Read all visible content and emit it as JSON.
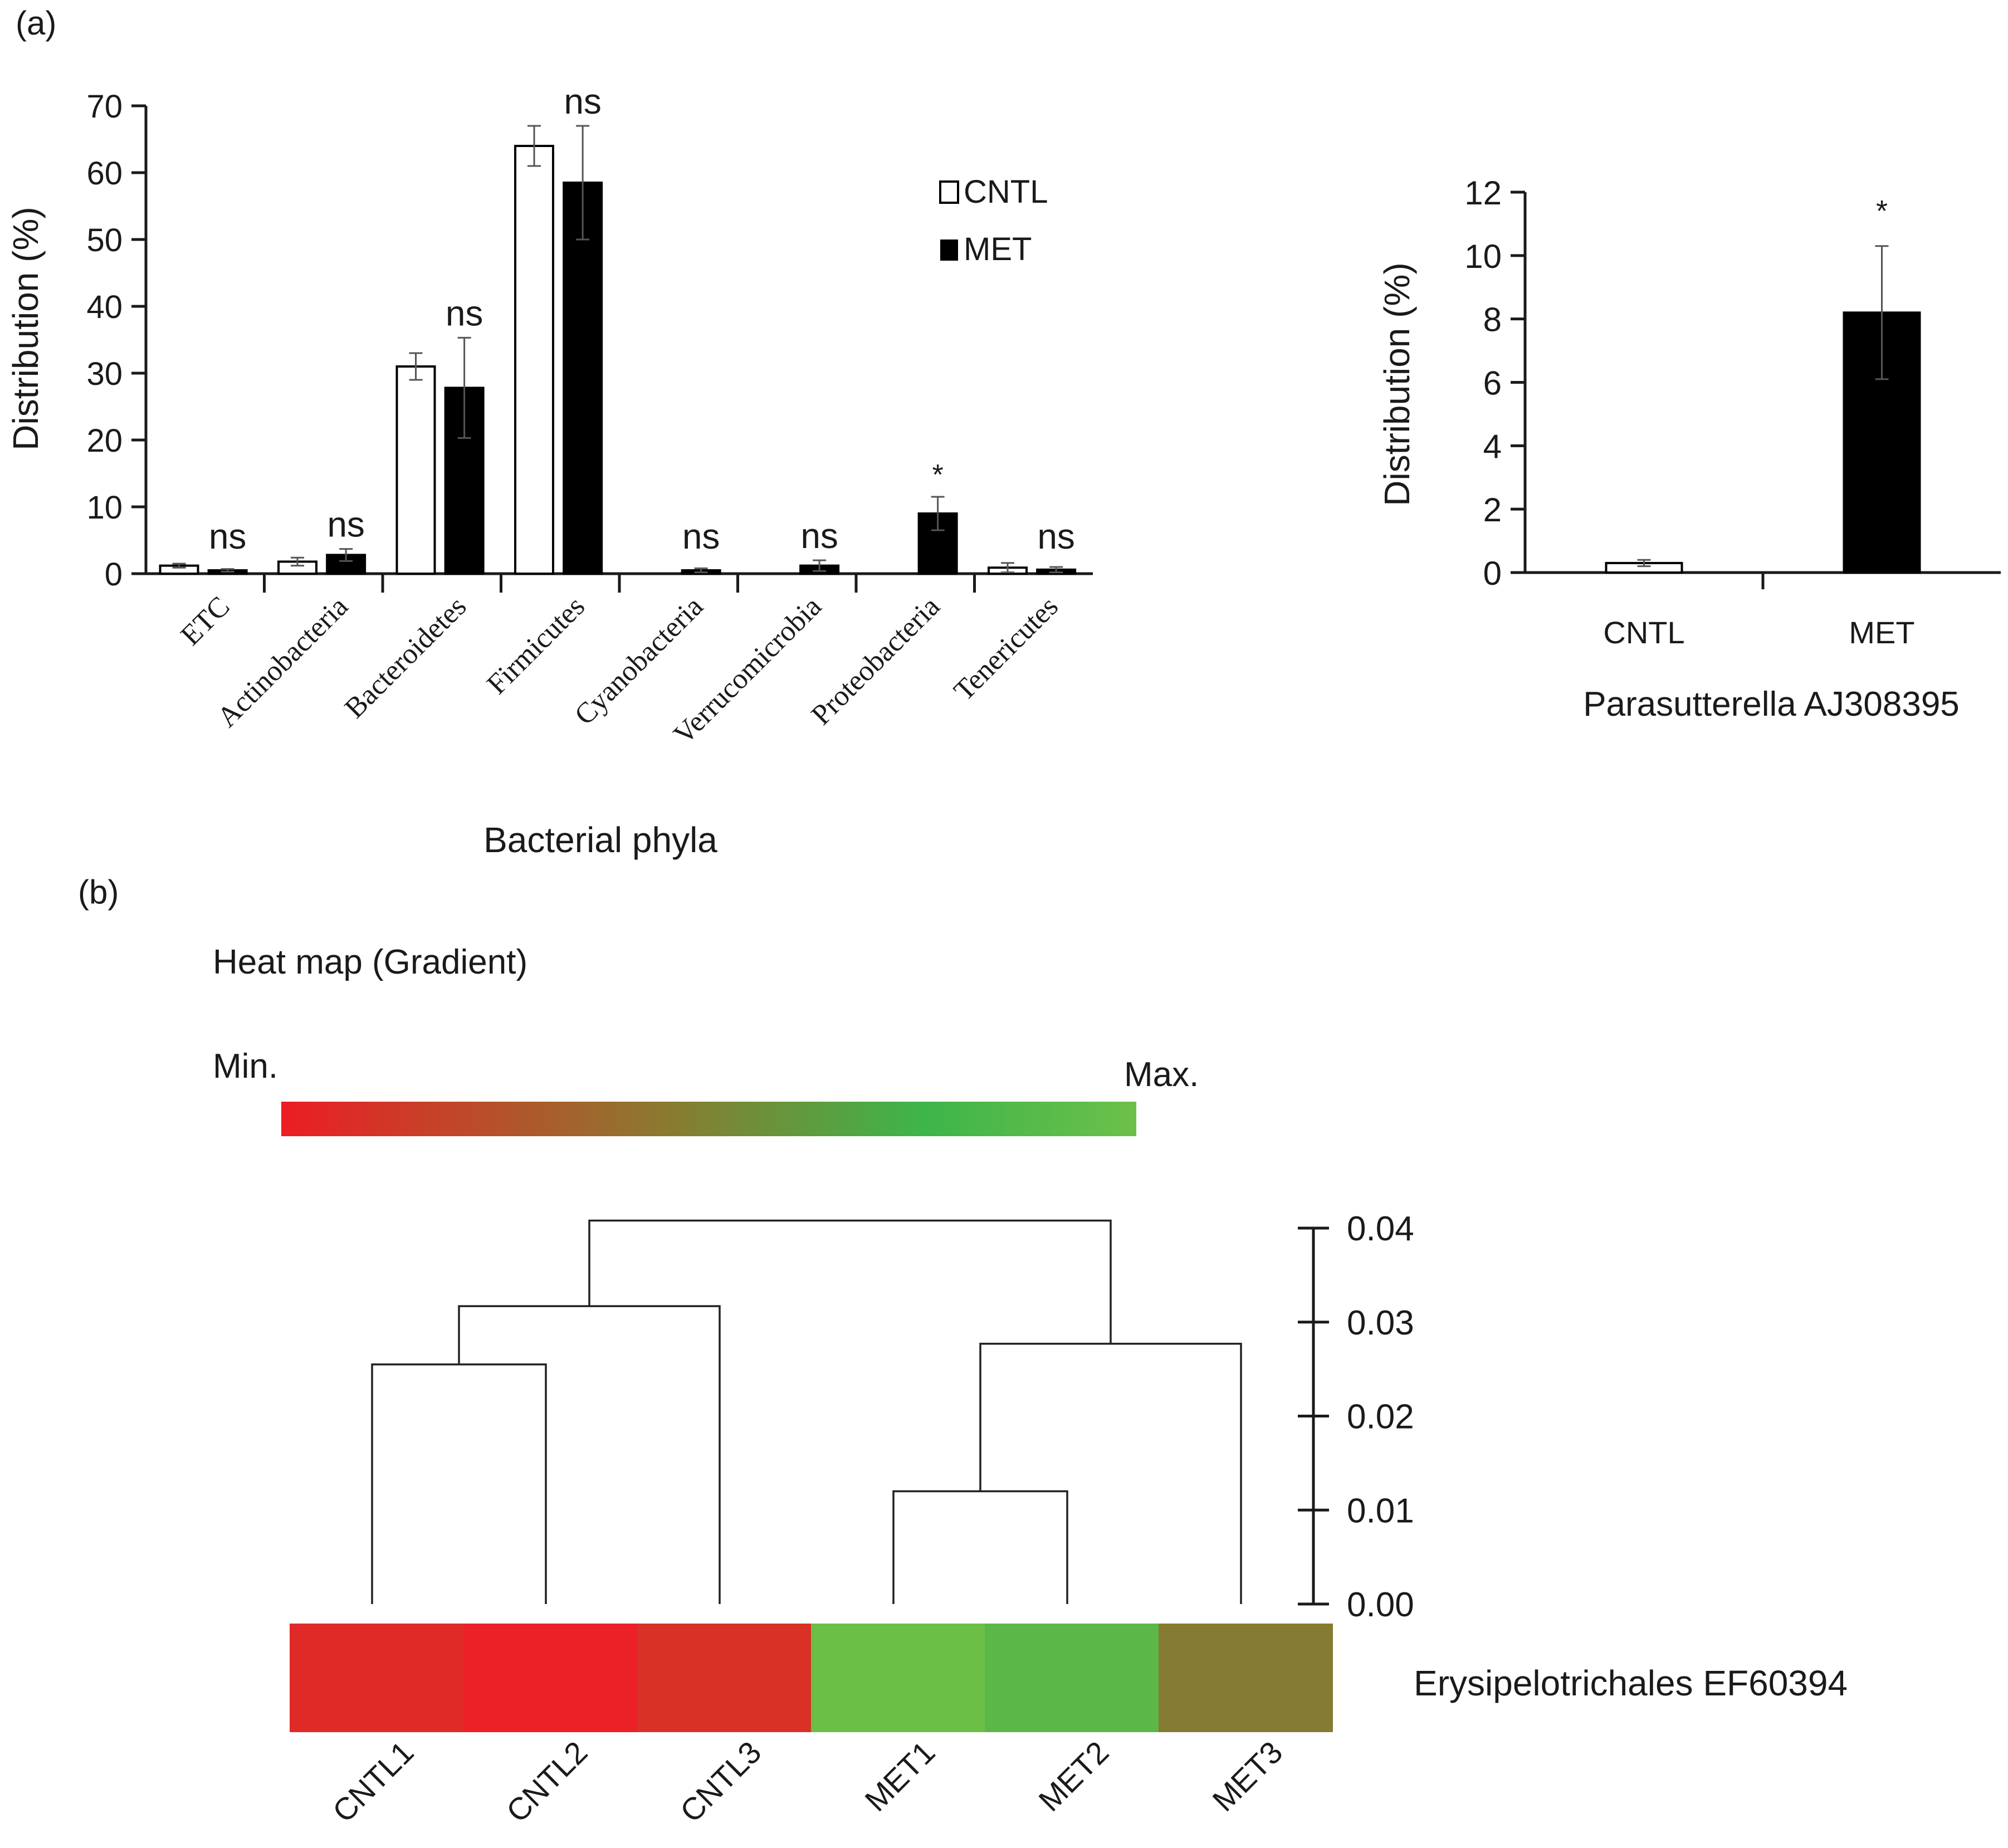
{
  "panel_labels": {
    "a": "(a)",
    "b": "(b)"
  },
  "legend": {
    "cntl": "CNTL",
    "met": "MET"
  },
  "colors": {
    "cntl_fill": "#ffffff",
    "met_fill": "#000000",
    "heat_min": "#ed1c24",
    "heat_mid": "#8a7a30",
    "heat_max": "#6cc04a"
  },
  "heatmap": {
    "title": "Heat map (Gradient)",
    "min_label": "Min.",
    "max_label": "Max.",
    "row_label": "Erysipelotrichales EF60394",
    "samples": [
      "CNTL1",
      "CNTL2",
      "CNTL3",
      "MET1",
      "MET2",
      "MET3"
    ],
    "cell_colors": [
      "#e02a27",
      "#ec2027",
      "#d93126",
      "#6bbf46",
      "#5bb848",
      "#857b32"
    ]
  },
  "chart_data": [
    {
      "type": "bar",
      "id": "phyla",
      "title": "",
      "xlabel": "Bacterial phyla",
      "ylabel": "Distribution (%)",
      "ylim": [
        0,
        70
      ],
      "yticks": [
        0,
        10,
        20,
        30,
        40,
        50,
        60,
        70
      ],
      "categories": [
        "ETC",
        "Actinobacteria",
        "Bacteroidetes",
        "Firmicutes",
        "Cyanobacteria",
        "Verrucomicrobia",
        "Proteobacteria",
        "Tenericutes"
      ],
      "series": [
        {
          "name": "CNTL",
          "values": [
            1.2,
            1.8,
            31.0,
            64.0,
            null,
            null,
            null,
            0.9
          ],
          "errors": [
            0.3,
            0.6,
            2.0,
            3.0,
            null,
            null,
            null,
            0.7
          ]
        },
        {
          "name": "MET",
          "values": [
            0.5,
            2.8,
            27.8,
            58.5,
            0.5,
            1.2,
            9.0,
            0.6
          ],
          "errors": [
            0.2,
            0.9,
            7.5,
            8.5,
            0.3,
            0.8,
            2.5,
            0.4
          ]
        }
      ],
      "annotations": [
        "ns",
        "ns",
        "ns",
        "ns",
        "ns",
        "ns",
        "*",
        "ns"
      ]
    },
    {
      "type": "bar",
      "id": "parasutterella",
      "title": "",
      "xlabel": "Parasutterella AJ308395",
      "ylabel": "Distribution (%)",
      "ylim": [
        0,
        12
      ],
      "yticks": [
        0,
        2,
        4,
        6,
        8,
        10,
        12
      ],
      "categories": [
        "CNTL",
        "MET"
      ],
      "values": [
        0.3,
        8.2
      ],
      "errors": [
        0.1,
        2.1
      ],
      "annotations": [
        "",
        "*"
      ]
    },
    {
      "type": "dendrogram",
      "id": "clustering",
      "ylim": [
        0,
        0.04
      ],
      "yticks": [
        "0.00",
        "0.01",
        "0.02",
        "0.03",
        "0.04"
      ],
      "leaves": [
        "CNTL1",
        "CNTL2",
        "CNTL3",
        "MET1",
        "MET2",
        "MET3"
      ],
      "merges": [
        {
          "left": "CNTL1",
          "right": "CNTL2",
          "height": 0.0255
        },
        {
          "left": "MET1",
          "right": "MET2",
          "height": 0.012
        },
        {
          "left": "CNTL1+CNTL2",
          "right": "CNTL3",
          "height": 0.0317
        },
        {
          "left": "MET1+MET2",
          "right": "MET3",
          "height": 0.0277
        },
        {
          "left": "CNTL cluster",
          "right": "MET cluster",
          "height": 0.0408
        }
      ]
    }
  ]
}
